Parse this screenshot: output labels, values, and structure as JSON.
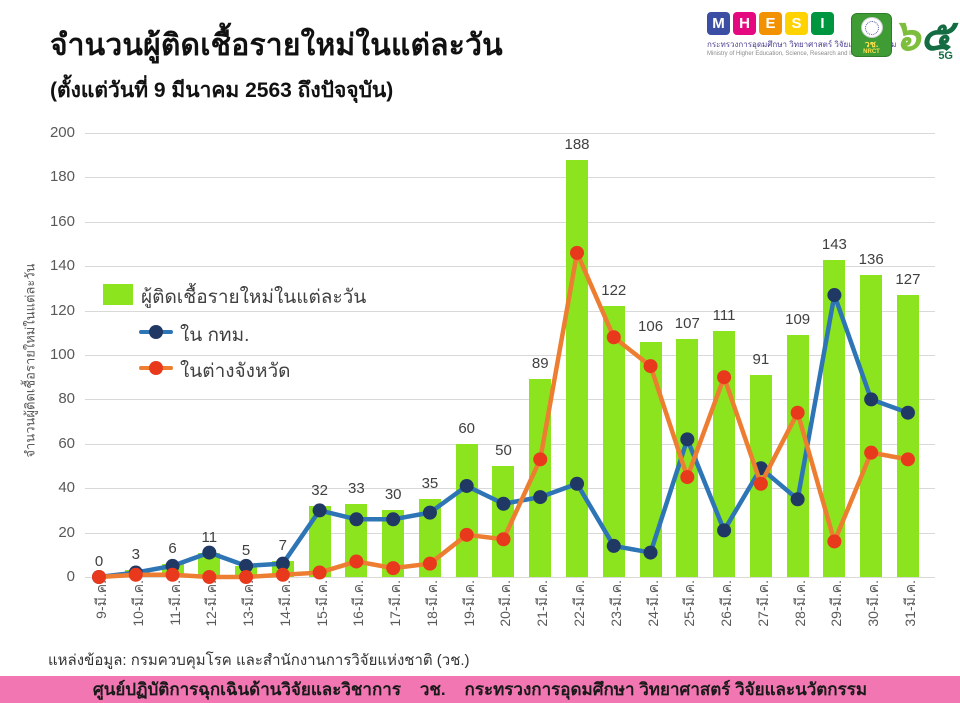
{
  "header": {
    "title": "จำนวนผู้ติดเชื้อรายใหม่ในแต่ละวัน",
    "subtitle": "(ตั้งแต่วันที่ 9 มีนาคม 2563 ถึงปัจจุบัน)"
  },
  "logos": {
    "mhesi_letters": [
      "M",
      "H",
      "E",
      "S",
      "I"
    ],
    "mhesi_colors": [
      "#3B4EA3",
      "#E5097F",
      "#F39200",
      "#FFD200",
      "#009640"
    ],
    "mhesi_thai": "กระทรวงการอุดมศึกษา วิทยาศาสตร์ วิจัยและนวัตกรรม",
    "mhesi_en": "Ministry of Higher Education, Science, Research and Innovation",
    "nrct_thai": "วช.",
    "nrct_en": "NRCT",
    "anniv_n1": "๖",
    "anniv_n2": "๕",
    "anniv_tag": "5G"
  },
  "chart_data": {
    "type": "bar+line",
    "ylabel": "จำนวนผู้ติดเชื้อรายใหม่ในแต่ละวัน",
    "ylim": [
      0,
      200
    ],
    "ytick_step": 20,
    "grid": true,
    "legend_position": "upper-left-inside",
    "categories": [
      "9-มี.ค.",
      "10-มี.ค.",
      "11-มี.ค.",
      "12-มี.ค.",
      "13-มี.ค.",
      "14-มี.ค.",
      "15-มี.ค.",
      "16-มี.ค.",
      "17-มี.ค.",
      "18-มี.ค.",
      "19-มี.ค.",
      "20-มี.ค.",
      "21-มี.ค.",
      "22-มี.ค.",
      "23-มี.ค.",
      "24-มี.ค.",
      "25-มี.ค.",
      "26-มี.ค.",
      "27-มี.ค.",
      "28-มี.ค.",
      "29-มี.ค.",
      "30-มี.ค.",
      "31-มี.ค."
    ],
    "bars": {
      "name": "ผู้ติดเชื้อรายใหม่ในแต่ละวัน",
      "color": "#8CE41F",
      "values": [
        0,
        3,
        6,
        11,
        5,
        7,
        32,
        33,
        30,
        35,
        60,
        50,
        89,
        188,
        122,
        106,
        107,
        111,
        91,
        109,
        143,
        136,
        127
      ]
    },
    "series": [
      {
        "name": "ใน กทม.",
        "line_color": "#2E75B6",
        "dot_color": "#1F3864",
        "values": [
          0,
          2,
          5,
          11,
          5,
          6,
          30,
          26,
          26,
          29,
          41,
          33,
          36,
          42,
          14,
          11,
          62,
          21,
          49,
          35,
          127,
          80,
          74
        ]
      },
      {
        "name": "ในต่างจังหวัด",
        "line_color": "#ED7D31",
        "dot_color": "#E8391D",
        "values": [
          0,
          1,
          1,
          0,
          0,
          1,
          2,
          7,
          4,
          6,
          19,
          17,
          53,
          146,
          108,
          95,
          45,
          90,
          42,
          74,
          16,
          56,
          53
        ]
      }
    ]
  },
  "source_note": "แหล่งข้อมูล: กรมควบคุมโรค และสำนักงานการวิจัยแห่งชาติ (วช.)",
  "footer": {
    "text": "ศูนย์ปฏิบัติการฉุกเฉินด้านวิจัยและวิชาการ    วช.    กระทรวงการอุดมศึกษา วิทยาศาสตร์ วิจัยและนวัตกรรม",
    "bg_color": "#F176B2"
  }
}
